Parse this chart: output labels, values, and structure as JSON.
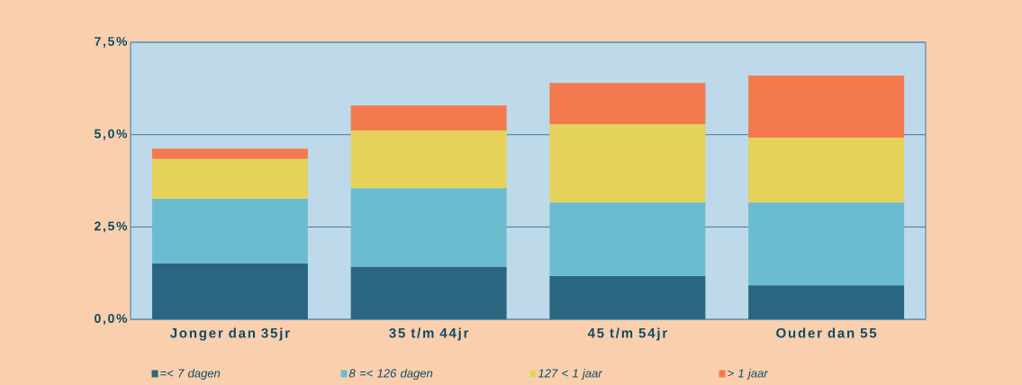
{
  "chart_data": {
    "type": "bar",
    "stacked": true,
    "categories": [
      "Jonger dan 35jr",
      "35 t/m 44jr",
      "45 t/m 54jr",
      "Ouder dan 55"
    ],
    "series": [
      {
        "name": "=< 7 dagen",
        "color": "#2a6680",
        "values": [
          1.51,
          1.42,
          1.17,
          0.92
        ]
      },
      {
        "name": "8 =< 126 dagen",
        "color": "#6cbccf",
        "values": [
          1.75,
          2.13,
          1.99,
          2.24
        ]
      },
      {
        "name": "127 < 1 jaar",
        "color": "#e6d25a",
        "values": [
          1.08,
          1.56,
          2.12,
          1.76
        ]
      },
      {
        "name": "> 1 jaar",
        "color": "#f37a4e",
        "values": [
          0.28,
          0.68,
          1.12,
          1.68
        ]
      }
    ],
    "ylim": [
      0,
      7.5
    ],
    "yticks": [
      {
        "value": 0,
        "label": "0,0%"
      },
      {
        "value": 2.5,
        "label": "2,5%"
      },
      {
        "value": 5,
        "label": "5,0%"
      },
      {
        "value": 7.5,
        "label": "7,5%"
      }
    ],
    "grid": "y",
    "legend": "bottom"
  }
}
